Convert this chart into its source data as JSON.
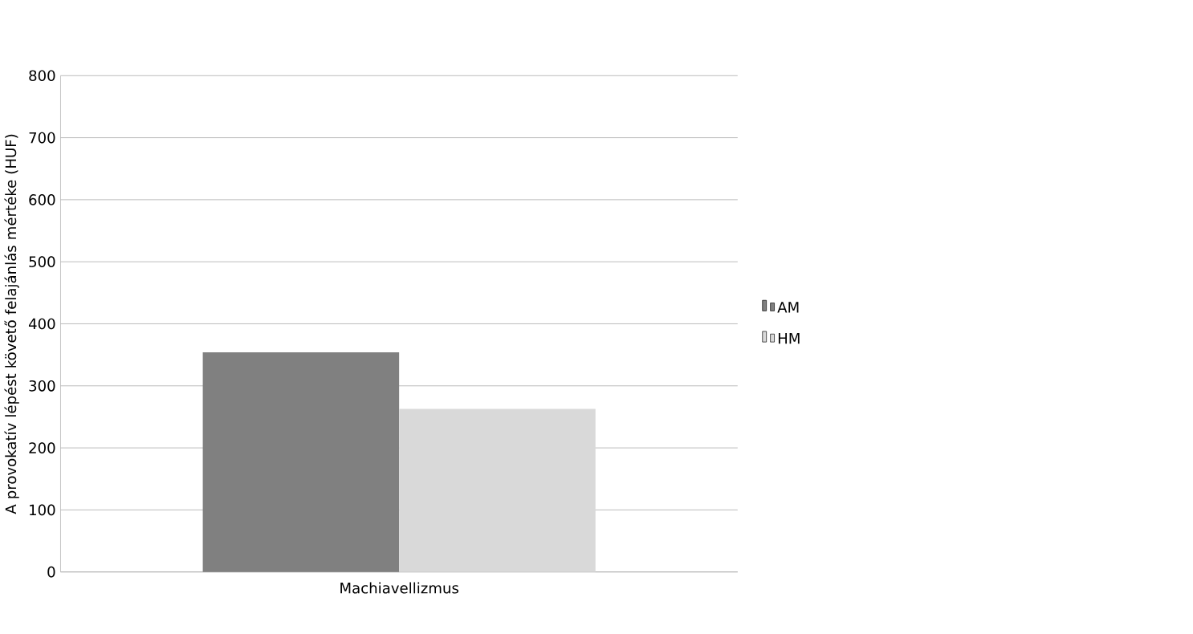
{
  "chart_data": {
    "type": "bar",
    "ylabel": "A provokatív lépést követő felajánlás mértéke (HUF)",
    "categories": [
      "Machiavellizmus"
    ],
    "series": [
      {
        "name": "AM",
        "color": "#808080",
        "values": [
          354
        ]
      },
      {
        "name": "HM",
        "color": "#d9d9d9",
        "values": [
          263
        ]
      }
    ],
    "ylim": [
      0,
      800
    ],
    "yticks": [
      0,
      100,
      200,
      300,
      400,
      500,
      600,
      700,
      800
    ],
    "grid": "y",
    "legend": "right"
  }
}
